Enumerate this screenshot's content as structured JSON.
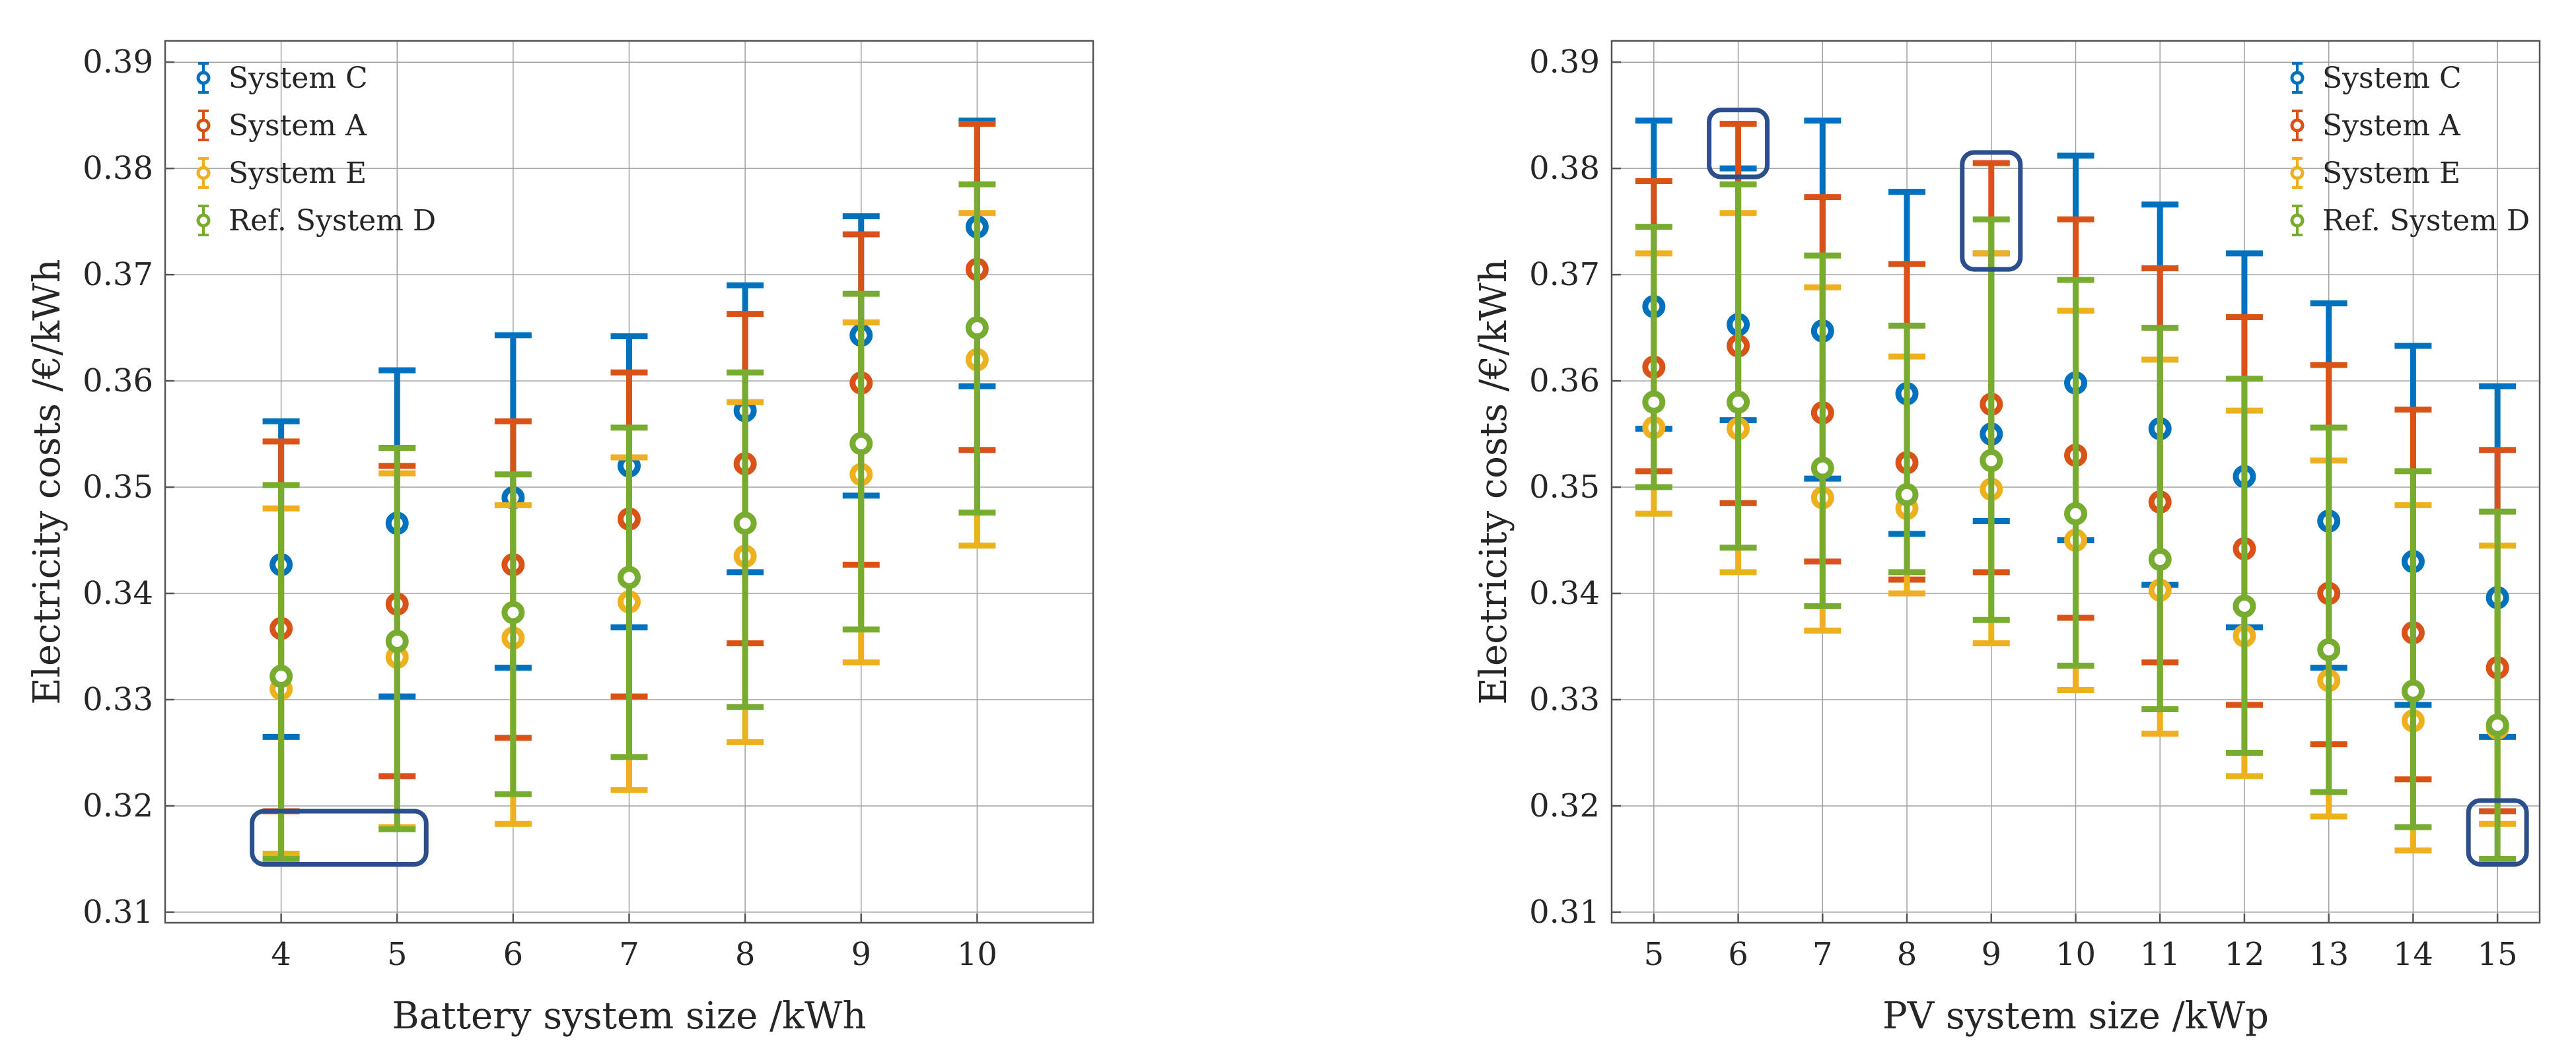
{
  "colors": {
    "System C": "#0072BD",
    "System A": "#D95319",
    "System E": "#EDB120",
    "Ref. System D": "#77AC30",
    "highlight": "#2B4F8C"
  },
  "chart_data": [
    {
      "type": "errorbar",
      "xlabel": "Battery system size /kWh",
      "ylabel": "Electricity costs /€/kWh",
      "ylim": [
        0.309,
        0.392
      ],
      "yticks": [
        0.31,
        0.32,
        0.33,
        0.34,
        0.35,
        0.36,
        0.37,
        0.38,
        0.39
      ],
      "x": [
        4,
        5,
        6,
        7,
        8,
        9,
        10
      ],
      "xlim": [
        3,
        11
      ],
      "legend_position": "top-left",
      "series": [
        {
          "name": "System C",
          "mean": [
            0.3427,
            0.3466,
            0.349,
            0.352,
            0.3572,
            0.3643,
            0.3745
          ],
          "low": [
            0.3265,
            0.3303,
            0.333,
            0.3368,
            0.342,
            0.3492,
            0.3595
          ],
          "high": [
            0.3562,
            0.361,
            0.3643,
            0.3642,
            0.369,
            0.3755,
            0.3845
          ]
        },
        {
          "name": "System A",
          "mean": [
            0.3367,
            0.339,
            0.3427,
            0.347,
            0.3522,
            0.3598,
            0.3705
          ],
          "low": [
            0.3195,
            0.3228,
            0.3264,
            0.3303,
            0.3353,
            0.3427,
            0.3535
          ],
          "high": [
            0.3543,
            0.352,
            0.3562,
            0.3608,
            0.3663,
            0.3738,
            0.3842
          ]
        },
        {
          "name": "System E",
          "mean": [
            0.331,
            0.334,
            0.3358,
            0.3392,
            0.3435,
            0.3512,
            0.362
          ],
          "low": [
            0.3155,
            0.318,
            0.3183,
            0.3215,
            0.326,
            0.3335,
            0.3445
          ],
          "high": [
            0.348,
            0.3513,
            0.3483,
            0.3528,
            0.358,
            0.3655,
            0.3758
          ]
        },
        {
          "name": "Ref. System D",
          "mean": [
            0.3322,
            0.3355,
            0.3382,
            0.3415,
            0.3466,
            0.3541,
            0.365
          ],
          "low": [
            0.315,
            0.3178,
            0.3211,
            0.3246,
            0.3293,
            0.3366,
            0.3476
          ],
          "high": [
            0.3502,
            0.3537,
            0.3512,
            0.3556,
            0.3608,
            0.3682,
            0.3785
          ]
        }
      ],
      "highlights": [
        {
          "x": [
            4,
            5
          ],
          "y": [
            0.3145,
            0.3195
          ]
        }
      ]
    },
    {
      "type": "errorbar",
      "xlabel": "PV system size /kWp",
      "ylabel": "Electricity costs /€/kWh",
      "ylim": [
        0.309,
        0.392
      ],
      "yticks": [
        0.31,
        0.32,
        0.33,
        0.34,
        0.35,
        0.36,
        0.37,
        0.38,
        0.39
      ],
      "x": [
        5,
        6,
        7,
        8,
        9,
        10,
        11,
        12,
        13,
        14,
        15
      ],
      "xlim": [
        4.5,
        15.5
      ],
      "legend_position": "top-right",
      "series": [
        {
          "name": "System C",
          "mean": [
            0.367,
            0.3653,
            0.3647,
            0.3588,
            0.355,
            0.3598,
            0.3555,
            0.351,
            0.3468,
            0.343,
            0.3396
          ],
          "low": [
            0.3555,
            0.3563,
            0.3508,
            0.3456,
            0.3468,
            0.345,
            0.3408,
            0.3368,
            0.333,
            0.3295,
            0.3265
          ],
          "high": [
            0.3845,
            0.38,
            0.3845,
            0.3778,
            0.372,
            0.3812,
            0.3766,
            0.372,
            0.3673,
            0.3633,
            0.3595
          ]
        },
        {
          "name": "System A",
          "mean": [
            0.3613,
            0.3633,
            0.357,
            0.3523,
            0.3578,
            0.353,
            0.3486,
            0.3442,
            0.34,
            0.3363,
            0.333
          ],
          "low": [
            0.3515,
            0.3485,
            0.343,
            0.3413,
            0.342,
            0.3377,
            0.3335,
            0.3295,
            0.3258,
            0.3225,
            0.3195
          ],
          "high": [
            0.3788,
            0.3842,
            0.3773,
            0.371,
            0.3805,
            0.3752,
            0.3706,
            0.366,
            0.3615,
            0.3573,
            0.3535
          ]
        },
        {
          "name": "System E",
          "mean": [
            0.3556,
            0.3555,
            0.349,
            0.348,
            0.3498,
            0.345,
            0.3403,
            0.336,
            0.3318,
            0.328,
            0.3273
          ],
          "low": [
            0.3475,
            0.342,
            0.3365,
            0.34,
            0.3353,
            0.3309,
            0.3268,
            0.3228,
            0.319,
            0.3158,
            0.3183
          ],
          "high": [
            0.372,
            0.3758,
            0.3688,
            0.3623,
            0.372,
            0.3666,
            0.362,
            0.3572,
            0.3525,
            0.3483,
            0.3445
          ]
        },
        {
          "name": "Ref. System D",
          "mean": [
            0.358,
            0.358,
            0.3518,
            0.3493,
            0.3525,
            0.3475,
            0.3432,
            0.3388,
            0.3347,
            0.3308,
            0.3276
          ],
          "low": [
            0.35,
            0.3443,
            0.3388,
            0.342,
            0.3375,
            0.3332,
            0.3291,
            0.325,
            0.3213,
            0.318,
            0.315
          ],
          "high": [
            0.3745,
            0.3785,
            0.3718,
            0.3652,
            0.3752,
            0.3695,
            0.365,
            0.3602,
            0.3556,
            0.3515,
            0.3477
          ]
        }
      ],
      "highlights": [
        {
          "x": [
            6,
            6
          ],
          "y": [
            0.3792,
            0.3855
          ]
        },
        {
          "x": [
            9,
            9
          ],
          "y": [
            0.3705,
            0.3815
          ]
        },
        {
          "x": [
            15,
            15
          ],
          "y": [
            0.3145,
            0.3205
          ]
        }
      ]
    }
  ]
}
